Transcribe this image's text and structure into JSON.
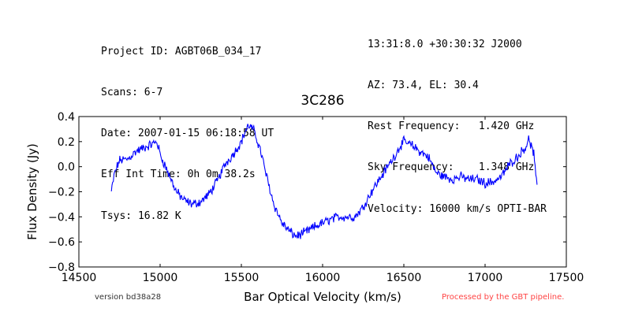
{
  "header": {
    "left_lines": [
      "Project ID: AGBT06B_034_17",
      "Scans: 6-7",
      "Date: 2007-01-15 06:18:58 UT",
      "Eff Int Time: 0h 0m 38.2s",
      "Tsys: 16.82 K"
    ],
    "right_lines": [
      "13:31:8.0 +30:30:32 J2000",
      "AZ: 73.4, EL: 30.4",
      "Rest Frequency:   1.420 GHz",
      "Sky Frequency:    1.348 GHz",
      "Velocity: 16000 km/s OPTI-BAR"
    ]
  },
  "footer": {
    "version": "version bd38a28",
    "processed": "Processed by the GBT pipeline."
  },
  "colors": {
    "series": "#0000ff",
    "processed_note": "#ff4444",
    "version_note": "#333333"
  },
  "chart_data": {
    "type": "line",
    "title": "3C286",
    "xlabel": "Bar Optical Velocity (km/s)",
    "ylabel": "Flux Density (Jy)",
    "xlim": [
      14500,
      17500
    ],
    "ylim": [
      -0.8,
      0.4
    ],
    "x_ticks": [
      14500,
      15000,
      15500,
      16000,
      16500,
      17000,
      17500
    ],
    "x_tick_labels": [
      "14500",
      "15000",
      "15500",
      "16000",
      "16500",
      "17000",
      "17500"
    ],
    "y_ticks": [
      0.4,
      0.2,
      0.0,
      -0.2,
      -0.4,
      -0.6,
      -0.8
    ],
    "y_tick_labels": [
      "0.4",
      "0.2",
      "0.0",
      "−0.2",
      "−0.4",
      "−0.6",
      "−0.8"
    ],
    "grid": false,
    "series": [
      {
        "x": [
          14700,
          14720,
          14750,
          14800,
          14850,
          14900,
          14950,
          14980,
          15000,
          15050,
          15100,
          15150,
          15200,
          15250,
          15300,
          15350,
          15400,
          15450,
          15500,
          15530,
          15550,
          15580,
          15620,
          15650,
          15700,
          15750,
          15800,
          15830,
          15850,
          15900,
          15950,
          16000,
          16050,
          16100,
          16150,
          16200,
          16250,
          16300,
          16350,
          16400,
          16450,
          16480,
          16500,
          16550,
          16600,
          16650,
          16700,
          16750,
          16800,
          16850,
          16900,
          16950,
          17000,
          17050,
          17100,
          17150,
          17200,
          17250,
          17270,
          17300,
          17320
        ],
        "y": [
          -0.2,
          -0.05,
          0.05,
          0.06,
          0.12,
          0.15,
          0.18,
          0.2,
          0.1,
          -0.05,
          -0.2,
          -0.27,
          -0.3,
          -0.28,
          -0.22,
          -0.12,
          0.02,
          0.1,
          0.2,
          0.3,
          0.33,
          0.28,
          0.12,
          -0.05,
          -0.3,
          -0.45,
          -0.52,
          -0.55,
          -0.55,
          -0.52,
          -0.48,
          -0.45,
          -0.42,
          -0.4,
          -0.4,
          -0.4,
          -0.32,
          -0.2,
          -0.1,
          0.0,
          0.1,
          0.17,
          0.2,
          0.17,
          0.12,
          0.08,
          -0.05,
          -0.08,
          -0.1,
          -0.08,
          -0.1,
          -0.1,
          -0.13,
          -0.12,
          -0.08,
          0.02,
          0.08,
          0.16,
          0.22,
          0.1,
          -0.18
        ]
      }
    ]
  }
}
